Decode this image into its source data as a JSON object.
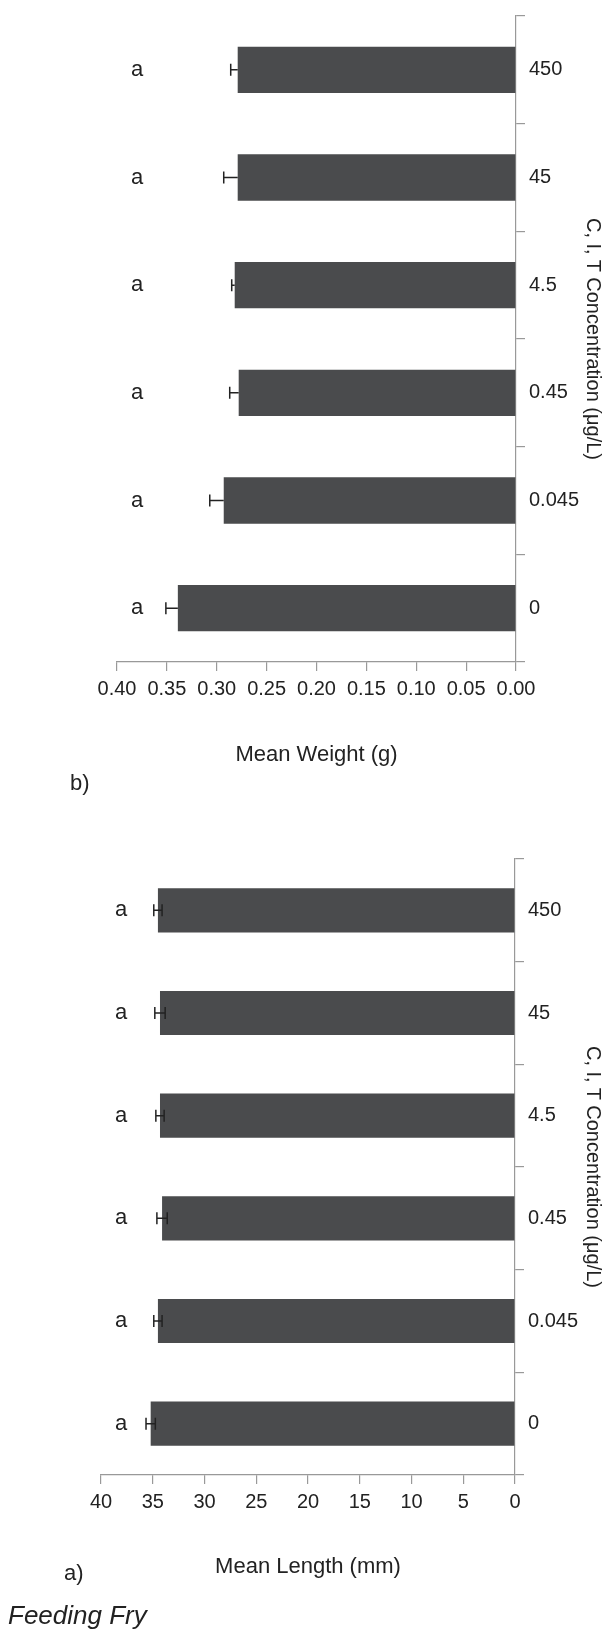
{
  "chart_data": [
    {
      "type": "bar",
      "orientation": "horizontal",
      "title": "Feeding Fry",
      "ylabel": "C, I, T Concentration (μg/L)",
      "xlabel": "Mean Length (mm)",
      "categories": [
        "450",
        "45",
        "4.5",
        "0.45",
        "0.045",
        "0"
      ],
      "values": [
        34.5,
        34.3,
        34.3,
        34.1,
        34.5,
        35.2
      ],
      "color": "#4a4b4d",
      "errors": [
        0.4,
        0.5,
        0.4,
        0.5,
        0.4,
        0.45
      ],
      "xlim": [
        40,
        0
      ],
      "xticks": [
        40,
        35,
        30,
        25,
        20,
        15,
        10,
        5,
        0
      ],
      "value_labels": [
        "a",
        "a",
        "a",
        "a",
        "a",
        "a"
      ],
      "annotations": [
        "a)"
      ]
    },
    {
      "type": "bar",
      "orientation": "horizontal",
      "ylabel": "C, I, T Concentration (μg/L)",
      "xlabel": "Mean Weight (g)",
      "categories": [
        "450",
        "45",
        "4.5",
        "0.45",
        "0.045",
        "0"
      ],
      "values": [
        0.279,
        0.279,
        0.282,
        0.278,
        0.293,
        0.339
      ],
      "color": "#4a4b4d",
      "errors": [
        [
          0.279,
          0.286
        ],
        [
          0.279,
          0.293
        ],
        [
          0.282,
          0.285
        ],
        [
          0.278,
          0.287
        ],
        [
          0.293,
          0.307
        ],
        [
          0.339,
          0.351
        ]
      ],
      "xlim": [
        0.4,
        0
      ],
      "xticks": [
        {
          "value": 0.4,
          "label": "0.40"
        },
        {
          "value": 0.35,
          "label": "0.35"
        },
        {
          "value": 0.3,
          "label": "0.30"
        },
        {
          "value": 0.25,
          "label": "0.25"
        },
        {
          "value": 0.2,
          "label": "0.20"
        },
        {
          "value": 0.15,
          "label": "0.15"
        },
        {
          "value": 0.1,
          "label": "0.10"
        },
        {
          "value": 0.05,
          "label": "0.05"
        },
        {
          "value": 0,
          "label": "0.00"
        }
      ],
      "value_labels": [
        "a",
        "a",
        "a",
        "a",
        "a",
        "a"
      ],
      "annotations": [
        "b)"
      ]
    }
  ]
}
